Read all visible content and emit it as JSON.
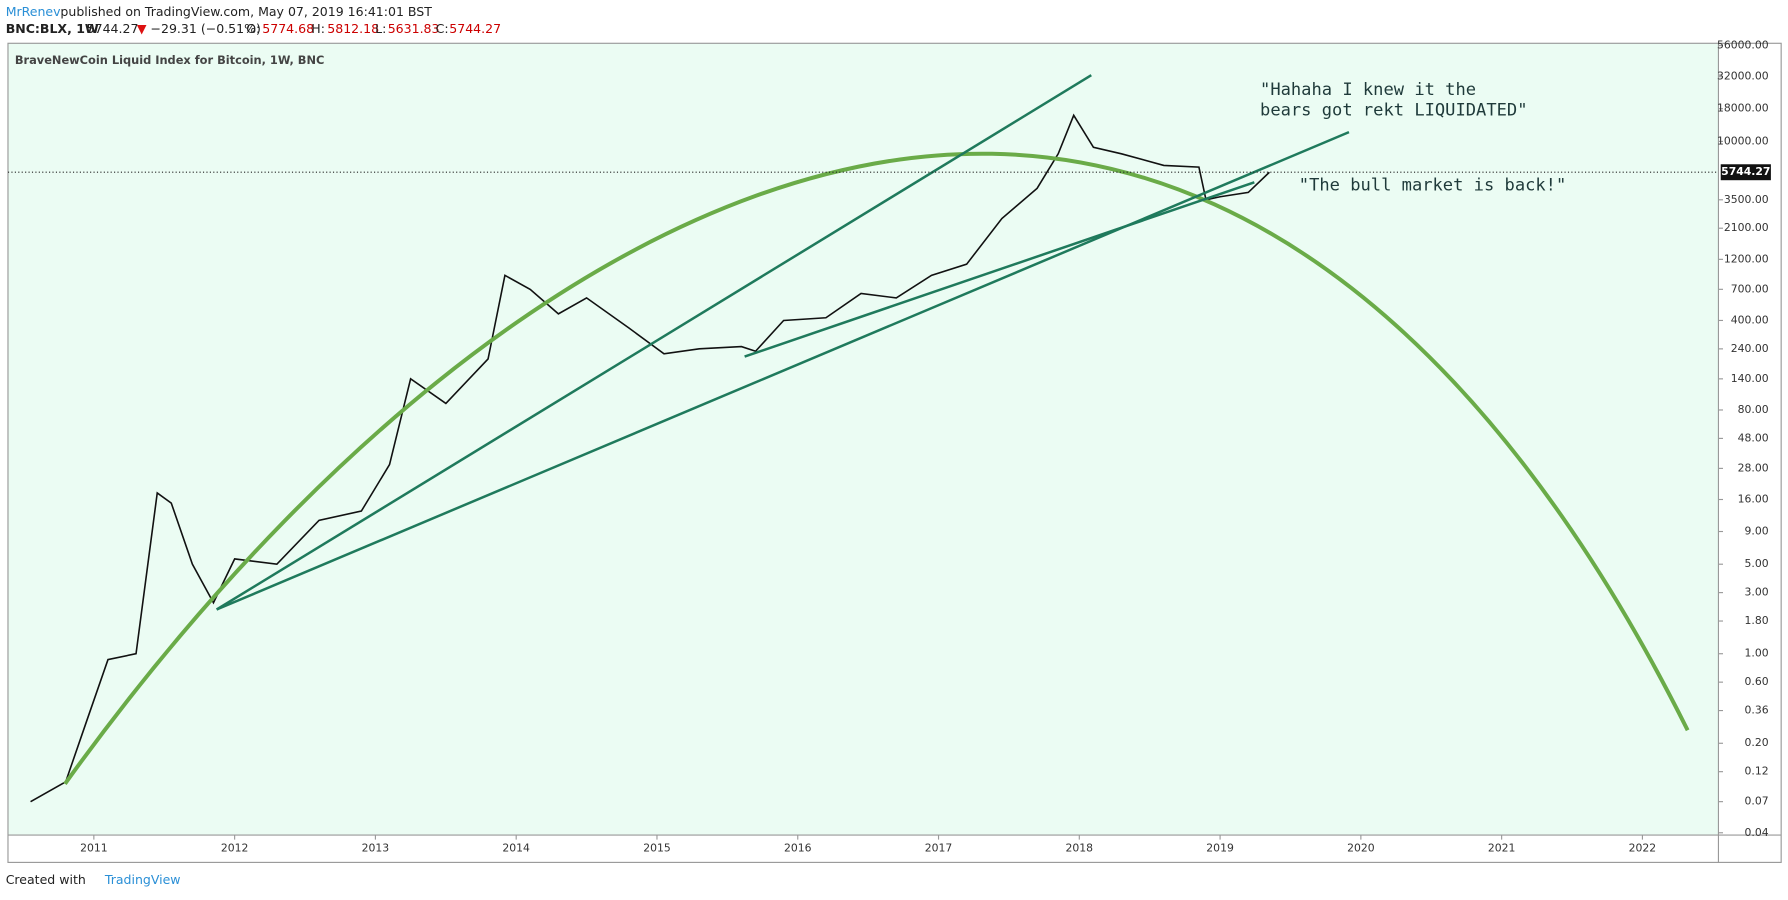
{
  "header": {
    "author": "MrRenev",
    "published": "published on TradingView.com, May 07, 2019 16:41:01 BST",
    "symbol": "BNC:BLX, 1W",
    "price": "5744.27",
    "arrow": "▼",
    "change": "−29.31 (−0.51%)",
    "o_label": "O:",
    "o": "5774.68",
    "h_label": "H:",
    "h": "5812.18",
    "l_label": "L:",
    "l": "5631.83",
    "c_label": "C:",
    "c": "5744.27"
  },
  "footer": {
    "created": "Created with",
    "brand": "TradingView"
  },
  "chart_data": {
    "type": "line",
    "title": "BraveNewCoin Liquid Index for Bitcoin, 1W, BNC",
    "annotations": [
      [
        "\"Hahaha I knew it the",
        "bears got rekt LIQUIDATED\""
      ],
      [
        "\"The bull market is back!\""
      ]
    ],
    "log_scale": true,
    "color": "#111111",
    "x": [
      2010.55,
      2010.8,
      2010.95,
      2011.1,
      2011.3,
      2011.45,
      2011.55,
      2011.7,
      2011.85,
      2012.0,
      2012.3,
      2012.6,
      2012.9,
      2013.1,
      2013.25,
      2013.5,
      2013.8,
      2013.92,
      2014.1,
      2014.3,
      2014.5,
      2014.8,
      2015.05,
      2015.3,
      2015.6,
      2015.7,
      2015.9,
      2016.2,
      2016.45,
      2016.7,
      2016.95,
      2017.2,
      2017.45,
      2017.7,
      2017.85,
      2017.96,
      2018.1,
      2018.3,
      2018.6,
      2018.85,
      2018.9,
      2019.0,
      2019.2,
      2019.35
    ],
    "values": [
      0.07,
      0.1,
      0.3,
      0.9,
      1.0,
      18,
      15,
      5,
      2.5,
      5.5,
      5,
      11,
      13,
      30,
      140,
      90,
      200,
      900,
      700,
      450,
      600,
      350,
      220,
      240,
      250,
      230,
      400,
      420,
      650,
      600,
      900,
      1100,
      2500,
      4300,
      8000,
      16000,
      9000,
      8000,
      6500,
      6300,
      3500,
      3700,
      4000,
      5744.27
    ],
    "last_price": 5744.27,
    "xlim": [
      2010.39,
      2022.54
    ],
    "xticks": [
      2011,
      2012,
      2013,
      2014,
      2015,
      2016,
      2017,
      2018,
      2019,
      2020,
      2021,
      2022
    ],
    "ylim": [
      0.04,
      56000
    ],
    "yticks": [
      {
        "value": 56000,
        "label": "56000.00"
      },
      {
        "value": 32000,
        "label": "32000.00"
      },
      {
        "value": 18000,
        "label": "18000.00"
      },
      {
        "value": 10000,
        "label": "10000.00"
      },
      {
        "value": 3500,
        "label": "3500.00"
      },
      {
        "value": 2100,
        "label": "2100.00"
      },
      {
        "value": 1200,
        "label": "1200.00"
      },
      {
        "value": 700,
        "label": "700.00"
      },
      {
        "value": 400,
        "label": "400.00"
      },
      {
        "value": 240,
        "label": "240.00"
      },
      {
        "value": 140,
        "label": "140.00"
      },
      {
        "value": 80,
        "label": "80.00"
      },
      {
        "value": 48,
        "label": "48.00"
      },
      {
        "value": 28,
        "label": "28.00"
      },
      {
        "value": 16,
        "label": "16.00"
      },
      {
        "value": 9,
        "label": "9.00"
      },
      {
        "value": 5,
        "label": "5.00"
      },
      {
        "value": 3,
        "label": "3.00"
      },
      {
        "value": 1.8,
        "label": "1.80"
      },
      {
        "value": 1,
        "label": "1.00"
      },
      {
        "value": 0.6,
        "label": "0.60"
      },
      {
        "value": 0.36,
        "label": "0.36"
      },
      {
        "value": 0.2,
        "label": "0.20"
      },
      {
        "value": 0.12,
        "label": "0.12"
      },
      {
        "value": 0.07,
        "label": "0.07"
      },
      {
        "value": 0.04,
        "label": "0.04"
      }
    ]
  }
}
